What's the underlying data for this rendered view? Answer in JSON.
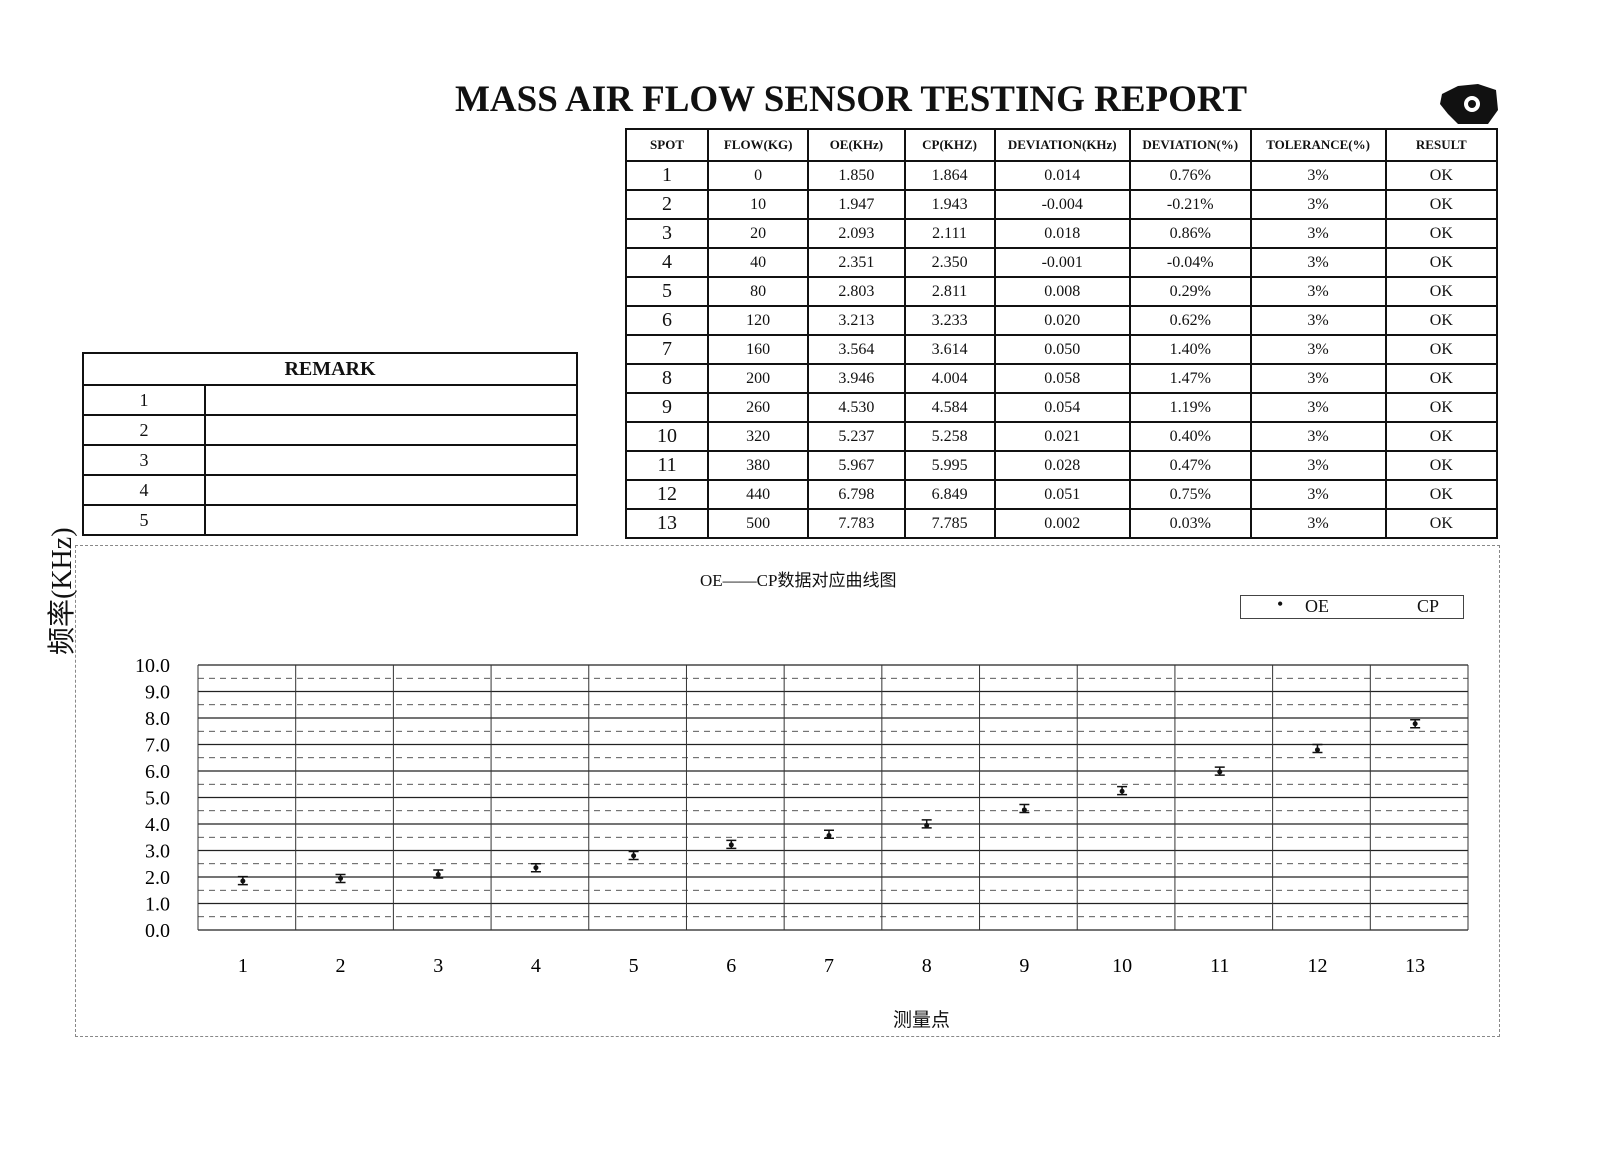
{
  "title": "MASS AIR FLOW SENSOR  TESTING REPORT",
  "table": {
    "headers": [
      "SPOT",
      "FLOW(KG)",
      "OE(KHz)",
      "CP(KHZ)",
      "DEVIATION(KHz)",
      "DEVIATION(%)",
      "TOLERANCE(%)",
      "RESULT"
    ],
    "rows": [
      [
        "1",
        "0",
        "1.850",
        "1.864",
        "0.014",
        "0.76%",
        "3%",
        "OK"
      ],
      [
        "2",
        "10",
        "1.947",
        "1.943",
        "-0.004",
        "-0.21%",
        "3%",
        "OK"
      ],
      [
        "3",
        "20",
        "2.093",
        "2.111",
        "0.018",
        "0.86%",
        "3%",
        "OK"
      ],
      [
        "4",
        "40",
        "2.351",
        "2.350",
        "-0.001",
        "-0.04%",
        "3%",
        "OK"
      ],
      [
        "5",
        "80",
        "2.803",
        "2.811",
        "0.008",
        "0.29%",
        "3%",
        "OK"
      ],
      [
        "6",
        "120",
        "3.213",
        "3.233",
        "0.020",
        "0.62%",
        "3%",
        "OK"
      ],
      [
        "7",
        "160",
        "3.564",
        "3.614",
        "0.050",
        "1.40%",
        "3%",
        "OK"
      ],
      [
        "8",
        "200",
        "3.946",
        "4.004",
        "0.058",
        "1.47%",
        "3%",
        "OK"
      ],
      [
        "9",
        "260",
        "4.530",
        "4.584",
        "0.054",
        "1.19%",
        "3%",
        "OK"
      ],
      [
        "10",
        "320",
        "5.237",
        "5.258",
        "0.021",
        "0.40%",
        "3%",
        "OK"
      ],
      [
        "11",
        "380",
        "5.967",
        "5.995",
        "0.028",
        "0.47%",
        "3%",
        "OK"
      ],
      [
        "12",
        "440",
        "6.798",
        "6.849",
        "0.051",
        "0.75%",
        "3%",
        "OK"
      ],
      [
        "13",
        "500",
        "7.783",
        "7.785",
        "0.002",
        "0.03%",
        "3%",
        "OK"
      ]
    ]
  },
  "remark": {
    "header": "REMARK",
    "rows": [
      "1",
      "2",
      "3",
      "4",
      "5"
    ]
  },
  "chart_data": {
    "type": "line",
    "title": "OE——CP数据对应曲线图",
    "ylabel": "频率(KHz)",
    "xlabel": "测量点",
    "categories": [
      "1",
      "2",
      "3",
      "4",
      "5",
      "6",
      "7",
      "8",
      "9",
      "10",
      "11",
      "12",
      "13"
    ],
    "ylim": [
      0,
      10
    ],
    "yticks": [
      "0.0",
      "1.0",
      "2.0",
      "3.0",
      "4.0",
      "5.0",
      "6.0",
      "7.0",
      "8.0",
      "9.0",
      "10.0"
    ],
    "grid": true,
    "legend_placement": "top-right",
    "series": [
      {
        "name": "OE",
        "values": [
          1.85,
          1.947,
          2.093,
          2.351,
          2.803,
          3.213,
          3.564,
          3.946,
          4.53,
          5.237,
          5.967,
          6.798,
          7.783
        ]
      },
      {
        "name": "CP",
        "values": [
          1.864,
          1.943,
          2.111,
          2.35,
          2.811,
          3.233,
          3.614,
          4.004,
          4.584,
          5.258,
          5.995,
          6.849,
          7.785
        ]
      }
    ]
  }
}
